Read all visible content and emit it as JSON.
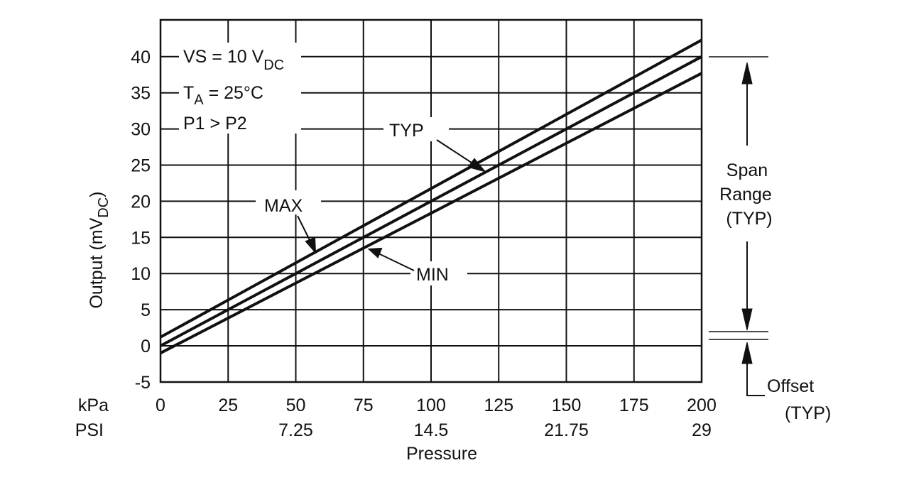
{
  "chart_data": {
    "type": "line",
    "title": "",
    "xlabel": "Pressure",
    "ylabel": "Output (mV",
    "ylabel_sub": "DC",
    "ylabel_end": ")",
    "xlim": [
      0,
      200
    ],
    "ylim": [
      -5,
      45
    ],
    "grid": true,
    "x_ticks": [
      0,
      25,
      50,
      75,
      100,
      125,
      150,
      175,
      200
    ],
    "x_tick_labels": [
      "0",
      "25",
      "50",
      "75",
      "100",
      "125",
      "150",
      "175",
      "200"
    ],
    "x_unit_label": "kPa",
    "psi_unit_label": "PSI",
    "psi_ticks": [
      {
        "x": 50,
        "label": "7.25"
      },
      {
        "x": 100,
        "label": "14.5"
      },
      {
        "x": 150,
        "label": "21.75"
      },
      {
        "x": 200,
        "label": "29"
      }
    ],
    "y_ticks": [
      -5,
      0,
      5,
      10,
      15,
      20,
      25,
      30,
      35,
      40
    ],
    "y_tick_labels": [
      "-5",
      "0",
      "5",
      "10",
      "15",
      "20",
      "25",
      "30",
      "35",
      "40"
    ],
    "series": [
      {
        "name": "MAX",
        "x": [
          0,
          200
        ],
        "y": [
          1.2,
          42.3
        ]
      },
      {
        "name": "TYP",
        "x": [
          0,
          200
        ],
        "y": [
          0,
          40
        ]
      },
      {
        "name": "MIN",
        "x": [
          0,
          200
        ],
        "y": [
          -1,
          37.7
        ]
      }
    ],
    "conditions": {
      "vs": "VS = 10 V",
      "vs_sub": "DC",
      "ta": "T",
      "ta_sub": "A",
      "ta_end": " = 25°C",
      "p": "P1 > P2"
    },
    "annotations": {
      "typ": "TYP",
      "max": "MAX",
      "min": "MIN",
      "span_1": "Span",
      "span_2": "Range",
      "span_3": "(TYP)",
      "offset_1": "Offset",
      "offset_2": "(TYP)"
    }
  }
}
